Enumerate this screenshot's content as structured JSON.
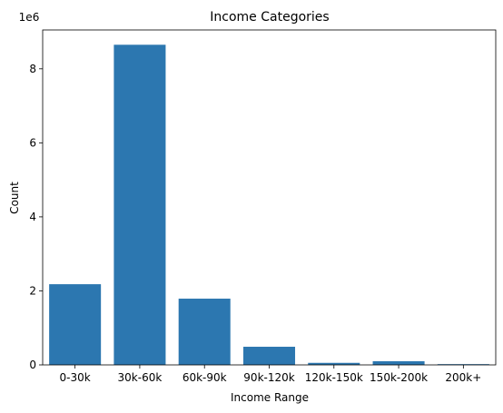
{
  "chart_data": {
    "type": "bar",
    "title": "Income Categories",
    "xlabel": "Income Range",
    "ylabel": "Count",
    "y_offset_label": "1e6",
    "categories": [
      "0-30k",
      "30k-60k",
      "60k-90k",
      "90k-120k",
      "120k-150k",
      "150k-200k",
      "200k+"
    ],
    "values": [
      2180000,
      8650000,
      1790000,
      490000,
      55000,
      100000,
      20000
    ],
    "ylim": [
      0,
      9050000
    ],
    "yticks": [
      0,
      2,
      4,
      6,
      8
    ],
    "ytick_multiplier": 1000000,
    "bar_color": "#2c77b0",
    "grid": false
  }
}
